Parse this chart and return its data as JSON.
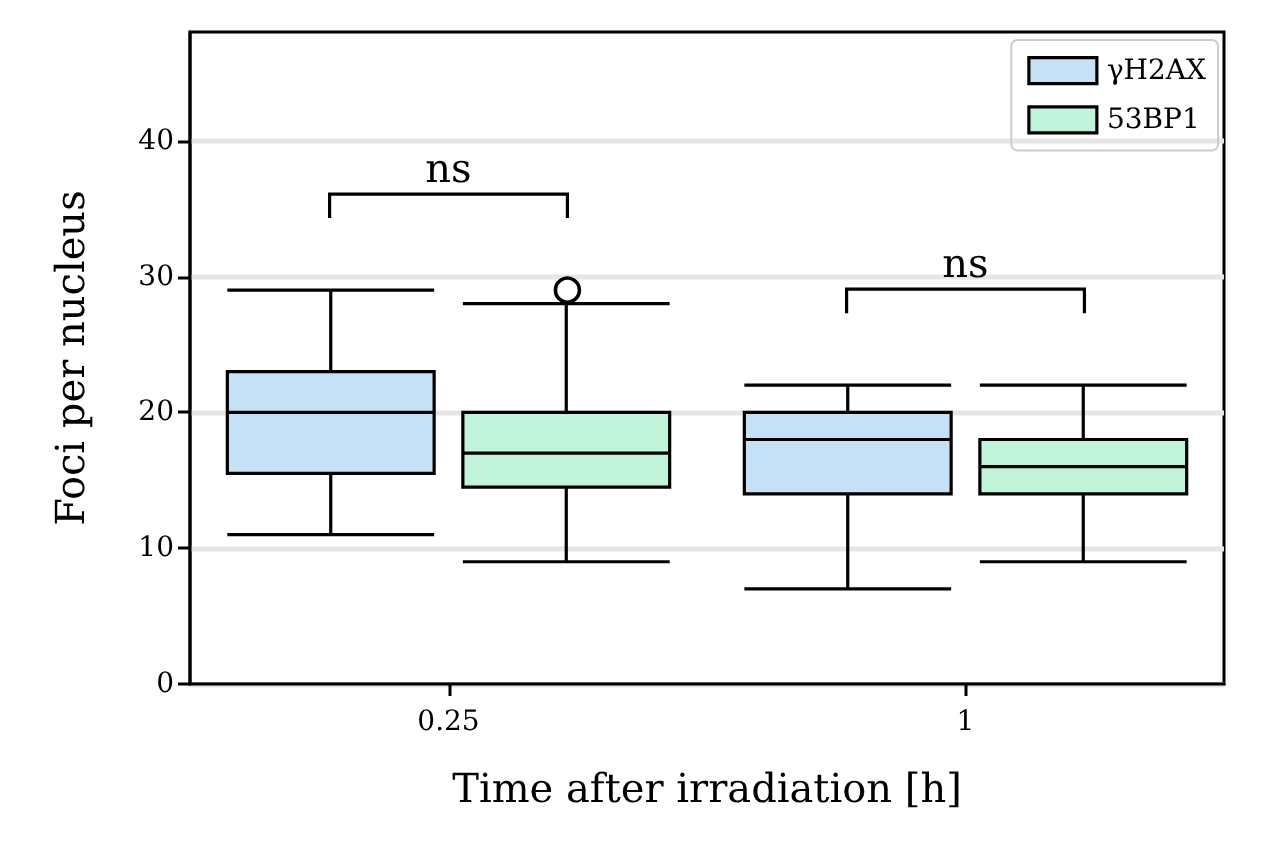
{
  "chart_data": {
    "type": "box",
    "xlabel": "Time after irradiation [h]",
    "ylabel": "Foci per nucleus",
    "categories": [
      "0.25",
      "1"
    ],
    "series": [
      {
        "name": "γH2AX",
        "color": "#c4e1f6",
        "boxes": [
          {
            "low": 11,
            "q1": 15.5,
            "median": 20,
            "q3": 23,
            "high": 29
          },
          {
            "low": 7,
            "q1": 14,
            "median": 18,
            "q3": 20,
            "high": 22
          }
        ]
      },
      {
        "name": "53BP1",
        "color": "#c2f4db",
        "boxes": [
          {
            "low": 9,
            "q1": 14.5,
            "median": 17,
            "q3": 20,
            "high": 28,
            "outliers": [
              29
            ]
          },
          {
            "low": 9,
            "q1": 14,
            "median": 16,
            "q3": 18,
            "high": 22
          }
        ]
      }
    ],
    "ylim": [
      0,
      48
    ],
    "yticks": [
      0,
      10,
      20,
      30,
      40
    ],
    "grid": "y",
    "legend": "top right",
    "annotations": [
      "ns",
      "ns"
    ]
  }
}
